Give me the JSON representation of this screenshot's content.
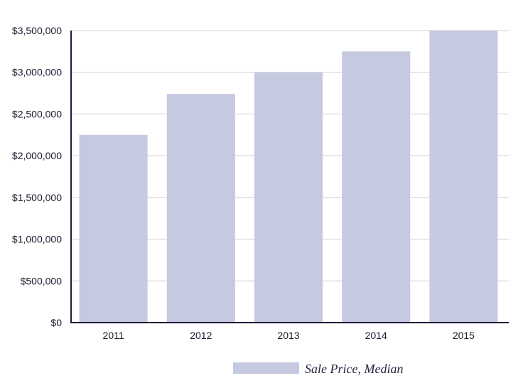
{
  "chart_data": {
    "type": "bar",
    "categories": [
      "2011",
      "2012",
      "2013",
      "2014",
      "2015"
    ],
    "series": [
      {
        "name": "Sale Price, Median",
        "values": [
          2250000,
          2740000,
          3000000,
          3250000,
          3500000
        ],
        "color": "#c5cae0"
      }
    ],
    "ylim": [
      0,
      3500000
    ],
    "yticks": [
      {
        "value": 0,
        "label": "$0"
      },
      {
        "value": 500000,
        "label": "$500,000"
      },
      {
        "value": 1000000,
        "label": "$1,000,000"
      },
      {
        "value": 1500000,
        "label": "$1,500,000"
      },
      {
        "value": 2000000,
        "label": "$2,000,000"
      },
      {
        "value": 2500000,
        "label": "$2,500,000"
      },
      {
        "value": 3000000,
        "label": "$3,000,000"
      },
      {
        "value": 3500000,
        "label": "$3,500,000"
      }
    ],
    "grid": true,
    "legend_position": "bottom",
    "colors": {
      "bar": "#c5cae0",
      "axis": "#1f1a3a",
      "grid": "#cfcfd4",
      "text": "#1a1a2e"
    }
  }
}
